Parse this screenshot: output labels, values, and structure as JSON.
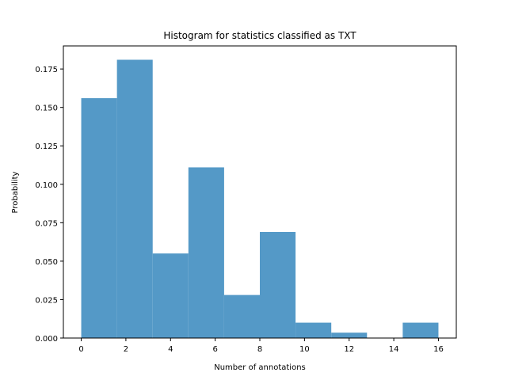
{
  "chart_data": {
    "type": "histogram",
    "title": "Histogram for statistics classified as TXT",
    "xlabel": "Number of annotations",
    "ylabel": "Probability",
    "xlim": [
      -0.8,
      16.8
    ],
    "ylim": [
      0,
      0.19
    ],
    "xticks": [
      0,
      2,
      4,
      6,
      8,
      10,
      12,
      14,
      16
    ],
    "yticks": [
      0.0,
      0.025,
      0.05,
      0.075,
      0.1,
      0.125,
      0.15,
      0.175
    ],
    "ytick_labels": [
      "0.000",
      "0.025",
      "0.050",
      "0.075",
      "0.100",
      "0.125",
      "0.150",
      "0.175"
    ],
    "bin_edges": [
      0,
      1.6,
      3.2,
      4.8,
      6.4,
      8.0,
      9.6,
      11.2,
      12.8,
      14.4,
      16.0
    ],
    "values": [
      0.156,
      0.181,
      0.055,
      0.111,
      0.028,
      0.069,
      0.01,
      0.0035,
      0.0,
      0.01
    ],
    "color": "#5499c7",
    "grid": false,
    "legend": "none"
  }
}
